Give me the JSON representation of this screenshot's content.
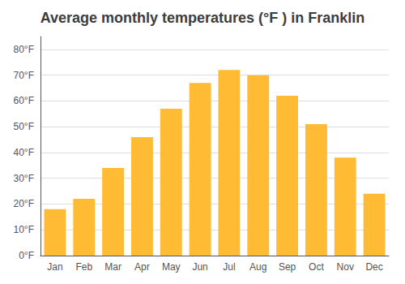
{
  "chart_data": {
    "type": "bar",
    "title": "Average monthly temperatures (°F ) in Franklin",
    "categories": [
      "Jan",
      "Feb",
      "Mar",
      "Apr",
      "May",
      "Jun",
      "Jul",
      "Aug",
      "Sep",
      "Oct",
      "Nov",
      "Dec"
    ],
    "values": [
      18,
      22,
      34,
      46,
      57,
      67,
      72,
      70,
      62,
      51,
      38,
      24
    ],
    "color": "#FFBB33",
    "ylim": [
      0,
      85
    ],
    "yticks": [
      {
        "value": 0,
        "label": "0°F"
      },
      {
        "value": 10,
        "label": "10°F"
      },
      {
        "value": 20,
        "label": "20°F"
      },
      {
        "value": 30,
        "label": "30°F"
      },
      {
        "value": 40,
        "label": "40°F"
      },
      {
        "value": 50,
        "label": "50°F"
      },
      {
        "value": 60,
        "label": "60°F"
      },
      {
        "value": 70,
        "label": "70°F"
      },
      {
        "value": 80,
        "label": "80°F"
      }
    ],
    "grid": true
  }
}
